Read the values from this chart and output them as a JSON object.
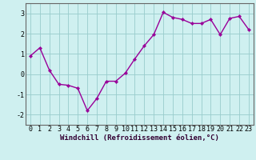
{
  "x": [
    0,
    1,
    2,
    3,
    4,
    5,
    6,
    7,
    8,
    9,
    10,
    11,
    12,
    13,
    14,
    15,
    16,
    17,
    18,
    19,
    20,
    21,
    22,
    23
  ],
  "y": [
    0.9,
    1.3,
    0.2,
    -0.5,
    -0.55,
    -0.7,
    -1.8,
    -1.2,
    -0.35,
    -0.35,
    0.05,
    0.75,
    1.4,
    1.95,
    3.05,
    2.8,
    2.7,
    2.5,
    2.5,
    2.7,
    1.95,
    2.75,
    2.85,
    2.2
  ],
  "line_color": "#990099",
  "marker": "D",
  "marker_size": 2.2,
  "bg_color": "#cff0f0",
  "grid_color": "#99cccc",
  "axis_color": "#666666",
  "xlabel": "Windchill (Refroidissement éolien,°C)",
  "xlabel_fontsize": 6.5,
  "ylim": [
    -2.5,
    3.5
  ],
  "yticks": [
    -2,
    -1,
    0,
    1,
    2,
    3
  ],
  "xlim": [
    -0.5,
    23.5
  ],
  "xticks": [
    0,
    1,
    2,
    3,
    4,
    5,
    6,
    7,
    8,
    9,
    10,
    11,
    12,
    13,
    14,
    15,
    16,
    17,
    18,
    19,
    20,
    21,
    22,
    23
  ],
  "tick_fontsize": 6.0,
  "linewidth": 1.0
}
